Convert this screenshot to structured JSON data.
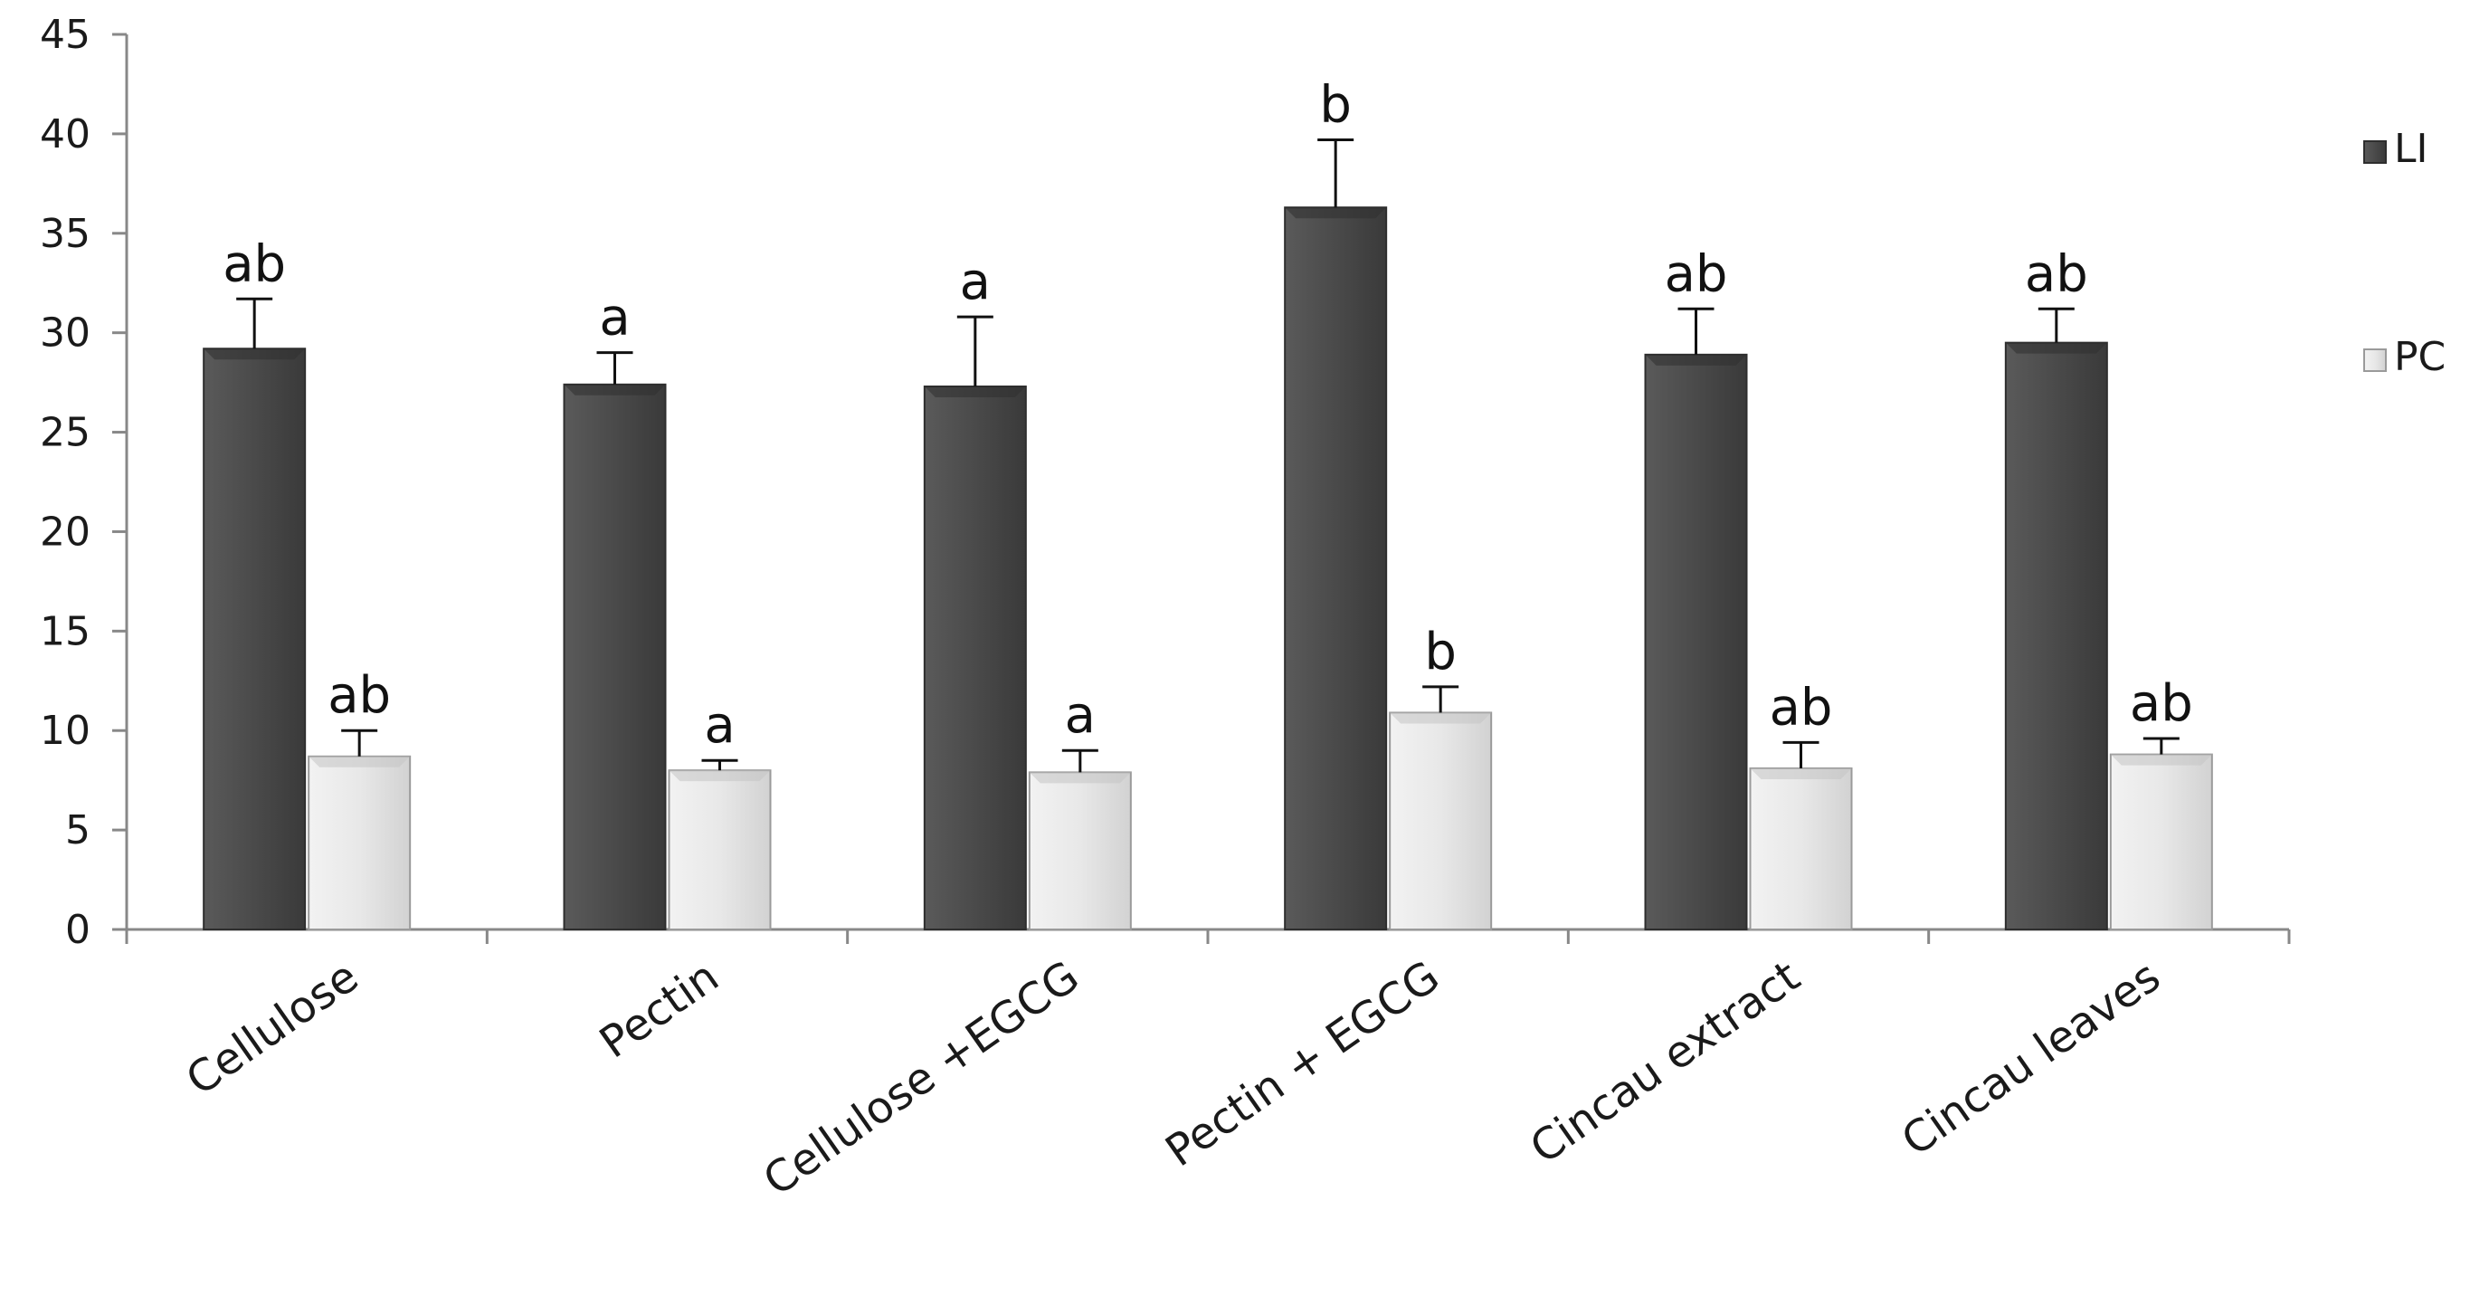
{
  "chart_data": {
    "type": "bar",
    "title": "",
    "xlabel": "",
    "ylabel": "",
    "ylim": [
      0,
      45
    ],
    "yticks": [
      0,
      5,
      10,
      15,
      20,
      25,
      30,
      35,
      40,
      45
    ],
    "grid": false,
    "legend_position": "right",
    "categories": [
      "Cellulose",
      "Pectin",
      "Cellulose +EGCG",
      "Pectin + EGCG",
      "Cincau extract",
      "Cincau leaves"
    ],
    "series": [
      {
        "name": "LI",
        "color": "#4d4d4d",
        "values": [
          29.2,
          27.4,
          27.3,
          36.3,
          28.9,
          29.5
        ],
        "errors": [
          2.5,
          1.6,
          3.5,
          3.4,
          2.3,
          1.7
        ],
        "significance": [
          "ab",
          "a",
          "a",
          "b",
          "ab",
          "ab"
        ]
      },
      {
        "name": "PC",
        "color": "#e6e6e6",
        "values": [
          8.7,
          8.0,
          7.9,
          10.9,
          8.1,
          8.8
        ],
        "errors": [
          1.3,
          0.5,
          1.1,
          1.3,
          1.3,
          0.8
        ],
        "significance": [
          "ab",
          "a",
          "a",
          "b",
          "ab",
          "ab"
        ]
      }
    ]
  }
}
